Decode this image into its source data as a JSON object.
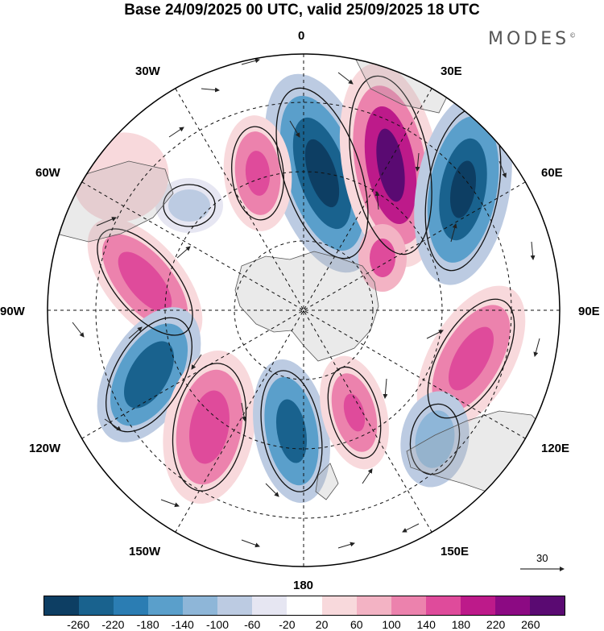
{
  "title": "Base 24/09/2025 00 UTC, valid 25/09/2025 18 UTC",
  "brand": "MODES",
  "brand_mark": "©",
  "longitudes": [
    "0",
    "30E",
    "60E",
    "90E",
    "120E",
    "150E",
    "180",
    "150W",
    "120W",
    "90W",
    "60W",
    "30W"
  ],
  "colorbar": {
    "ticks": [
      "-260",
      "-220",
      "-180",
      "-140",
      "-100",
      "-60",
      "-20",
      "20",
      "60",
      "100",
      "140",
      "180",
      "220",
      "260"
    ],
    "colors": [
      "#0d3e63",
      "#19628e",
      "#2b7db3",
      "#5a9fcb",
      "#8eb6d8",
      "#bccbe2",
      "#e6e6f2",
      "#ffffff",
      "#f8d9dc",
      "#f3b3c4",
      "#ec82ad",
      "#df4b9b",
      "#bd1a8a",
      "#8c0a83",
      "#5a0a72"
    ]
  },
  "reference_vector": "30",
  "anomalies": [
    {
      "sign": "neg",
      "strength": 4
    },
    {
      "sign": "pos",
      "strength": 4
    },
    {
      "sign": "neg",
      "strength": 4
    },
    {
      "sign": "pos",
      "strength": 3
    },
    {
      "sign": "pos",
      "strength": 3
    },
    {
      "sign": "neg",
      "strength": 1
    },
    {
      "sign": "pos",
      "strength": 3
    },
    {
      "sign": "neg",
      "strength": 3
    },
    {
      "sign": "pos",
      "strength": 3
    },
    {
      "sign": "neg",
      "strength": 3
    },
    {
      "sign": "pos",
      "strength": 2
    },
    {
      "sign": "neg",
      "strength": 2
    },
    {
      "sign": "pos",
      "strength": 2
    },
    {
      "sign": "neg",
      "strength": 1
    }
  ]
}
